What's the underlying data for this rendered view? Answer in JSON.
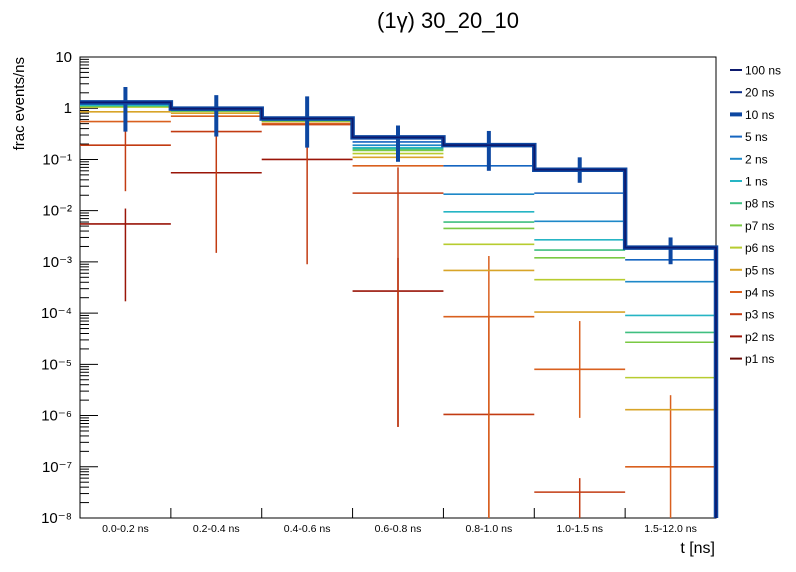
{
  "chart_data": {
    "type": "step",
    "title": "(1γ) 30_20_10",
    "xlabel": "t [ns]",
    "ylabel": "frac events/ns",
    "yscale": "log",
    "ylim": [
      1e-08,
      10
    ],
    "ytick_labels": [
      "10",
      "1",
      "10⁻¹",
      "10⁻²",
      "10⁻³",
      "10⁻⁴",
      "10⁻⁵",
      "10⁻⁶",
      "10⁻⁷",
      "10⁻⁸"
    ],
    "categories": [
      "0.0-0.2 ns",
      "0.2-0.4 ns",
      "0.4-0.6 ns",
      "0.6-0.8 ns",
      "0.8-1.0 ns",
      "1.0-1.5 ns",
      "1.5-12.0 ns"
    ],
    "legend_position": "right",
    "series": [
      {
        "name": "100 ns",
        "color": "#0d1a6e",
        "values": [
          1.3,
          0.98,
          0.63,
          0.27,
          0.19,
          0.063,
          0.0019
        ],
        "err": []
      },
      {
        "name": "20 ns",
        "color": "#0a2d8a",
        "values": [
          1.3,
          0.98,
          0.63,
          0.27,
          0.19,
          0.063,
          0.0019
        ],
        "err": []
      },
      {
        "name": "10 ns",
        "color": "#0d47a1",
        "thick": true,
        "values": [
          1.3,
          0.98,
          0.63,
          0.27,
          0.19,
          0.063,
          0.0019
        ],
        "err": [
          [
            0.35,
            2.6
          ],
          [
            0.28,
            1.8
          ],
          [
            0.17,
            1.7
          ],
          [
            0.09,
            0.46
          ],
          [
            0.06,
            0.36
          ],
          [
            0.035,
            0.11
          ],
          [
            0.0009,
            0.003
          ]
        ]
      },
      {
        "name": "5 ns",
        "color": "#1565c0",
        "values": [
          1.25,
          0.95,
          0.62,
          0.22,
          0.075,
          0.022,
          0.0011
        ],
        "err": []
      },
      {
        "name": "2 ns",
        "color": "#1e88c8",
        "values": [
          1.2,
          0.93,
          0.6,
          0.19,
          0.021,
          0.0062,
          0.00041
        ],
        "err": []
      },
      {
        "name": "1 ns",
        "color": "#26b5c4",
        "values": [
          1.15,
          0.91,
          0.59,
          0.17,
          0.0095,
          0.0027,
          9e-05
        ],
        "err": []
      },
      {
        "name": "p8 ns",
        "color": "#3fbf80",
        "values": [
          1.12,
          0.9,
          0.58,
          0.16,
          0.006,
          0.0017,
          4.2e-05
        ],
        "err": []
      },
      {
        "name": "p7 ns",
        "color": "#7ac943",
        "values": [
          1.1,
          0.89,
          0.57,
          0.15,
          0.0045,
          0.0012,
          2.7e-05
        ],
        "err": []
      },
      {
        "name": "p6 ns",
        "color": "#b7cc2f",
        "values": [
          1.05,
          0.87,
          0.56,
          0.13,
          0.0022,
          0.00045,
          5.5e-06
        ],
        "err": []
      },
      {
        "name": "p5 ns",
        "color": "#d8a428",
        "values": [
          0.85,
          0.8,
          0.55,
          0.11,
          0.00068,
          0.000105,
          1.3e-06
        ],
        "err": []
      },
      {
        "name": "p4 ns",
        "color": "#d9601f",
        "values": [
          0.55,
          0.7,
          0.5,
          0.075,
          8.5e-05,
          8e-06,
          1e-07
        ],
        "err": [
          [],
          [],
          [],
          [],
          [
            1e-08,
            0.0013
          ],
          [
            9e-07,
            7e-05
          ],
          [
            1e-08,
            2.5e-06
          ]
        ]
      },
      {
        "name": "p3 ns",
        "color": "#c23b12",
        "values": [
          0.19,
          0.35,
          0.48,
          0.022,
          1.05e-06,
          3.2e-08,
          0
        ],
        "err": [
          [
            0.024,
            1.3
          ],
          [
            0.0015,
            0.9
          ],
          [
            0.0009,
            0.9
          ],
          [
            6e-07,
            0.07
          ],
          [
            1e-08,
            9e-05
          ],
          [
            1e-08,
            6e-08
          ],
          []
        ]
      },
      {
        "name": "p2 ns",
        "color": "#9a1508",
        "values": [
          0.0055,
          0.055,
          0.1,
          0.00027,
          0,
          0,
          0
        ],
        "err": [
          [
            0.00017,
            0.011
          ],
          [],
          [],
          [
            6e-07,
            0.0012
          ],
          [],
          [],
          []
        ]
      },
      {
        "name": "p1 ns",
        "color": "#6b0a05",
        "values": [
          0,
          0,
          0,
          0,
          0,
          0,
          0
        ],
        "err": []
      }
    ]
  }
}
